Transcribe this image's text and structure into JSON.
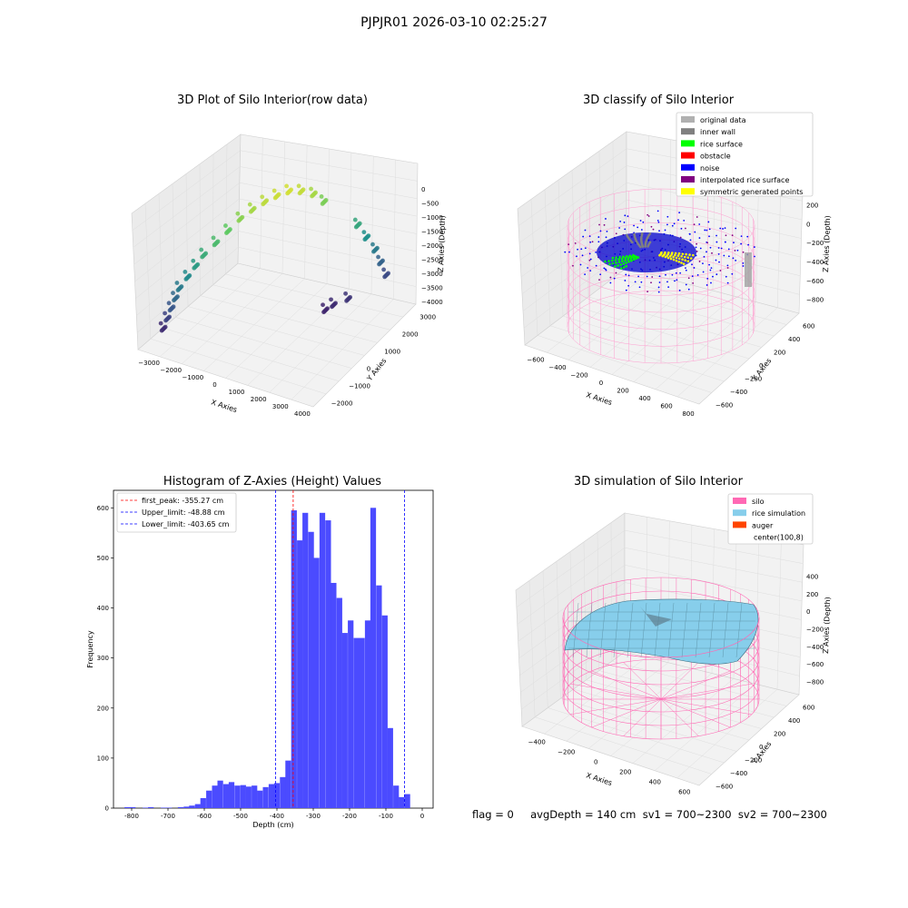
{
  "suptitle": "PJPJR01 2026-03-10 02:25:27",
  "footer": "flag = 0     avgDepth = 140 cm  sv1 = 700~2300  sv2 = 700~2300",
  "chart_data": [
    {
      "type": "scatter",
      "projection": "3d",
      "title": "3D Plot of Silo Interior(row data)",
      "xlabel": "X Axies",
      "ylabel": "Y Axies",
      "zlabel": "Z Axies (Depth)",
      "xticks": [
        "−3000",
        "−2000",
        "−1000",
        "0",
        "1000",
        "2000",
        "3000",
        "4000"
      ],
      "yticks": [
        "−2000",
        "−1000",
        "0",
        "1000",
        "2000",
        "3000"
      ],
      "zticks": [
        "0",
        "−500",
        "−1000",
        "−1500",
        "−2000",
        "−2500",
        "−3000",
        "−3500",
        "−4000"
      ],
      "xlim": [
        -3500,
        4200
      ],
      "ylim": [
        -2500,
        3200
      ],
      "zlim": [
        -4200,
        200
      ],
      "colormap": "viridis",
      "points": [
        {
          "x": -2800,
          "y": -1900,
          "z": -3600
        },
        {
          "x": -2700,
          "y": -1800,
          "z": -3300
        },
        {
          "x": -2600,
          "y": -1700,
          "z": -3000
        },
        {
          "x": -2500,
          "y": -1600,
          "z": -2700
        },
        {
          "x": -2400,
          "y": -1500,
          "z": -2400
        },
        {
          "x": -2200,
          "y": -1300,
          "z": -2100
        },
        {
          "x": -2000,
          "y": -1100,
          "z": -1800
        },
        {
          "x": -1800,
          "y": -900,
          "z": -1500
        },
        {
          "x": -1500,
          "y": -600,
          "z": -1200
        },
        {
          "x": -1200,
          "y": -300,
          "z": -900
        },
        {
          "x": -900,
          "y": 0,
          "z": -600
        },
        {
          "x": -600,
          "y": 300,
          "z": -400
        },
        {
          "x": -300,
          "y": 600,
          "z": -250
        },
        {
          "x": 0,
          "y": 900,
          "z": -150
        },
        {
          "x": 300,
          "y": 1200,
          "z": -100
        },
        {
          "x": 600,
          "y": 1500,
          "z": -200
        },
        {
          "x": 900,
          "y": 1800,
          "z": -400
        },
        {
          "x": 1200,
          "y": 2000,
          "z": -700
        },
        {
          "x": 2200,
          "y": 2600,
          "z": -1600
        },
        {
          "x": 2500,
          "y": 2700,
          "z": -2000
        },
        {
          "x": 2800,
          "y": 2800,
          "z": -2400
        },
        {
          "x": 3000,
          "y": 2850,
          "z": -2800
        },
        {
          "x": 3200,
          "y": 2900,
          "z": -3200
        },
        {
          "x": 2400,
          "y": 1800,
          "z": -3500
        },
        {
          "x": 2000,
          "y": 1500,
          "z": -3600
        },
        {
          "x": 1800,
          "y": 1300,
          "z": -3700
        }
      ]
    },
    {
      "type": "scatter",
      "projection": "3d",
      "title": "3D classify of Silo Interior",
      "xlabel": "X Axies",
      "ylabel": "Y Axies",
      "zlabel": "Z Axies (Depth)",
      "xticks": [
        "−600",
        "−400",
        "−200",
        "0",
        "200",
        "400",
        "600",
        "800"
      ],
      "yticks": [
        "−600",
        "−400",
        "−200",
        "0",
        "200",
        "400",
        "600"
      ],
      "zticks": [
        "200",
        "0",
        "−200",
        "−400",
        "−600",
        "−800"
      ],
      "xlim": [
        -650,
        850
      ],
      "ylim": [
        -700,
        700
      ],
      "zlim": [
        -900,
        300
      ],
      "legend": [
        {
          "label": "original data",
          "color": "#b0b0b0"
        },
        {
          "label": "inner wall",
          "color": "#808080"
        },
        {
          "label": "rice surface",
          "color": "#00ff00"
        },
        {
          "label": "obstacle",
          "color": "#ff0000"
        },
        {
          "label": "noise",
          "color": "#0000ff"
        },
        {
          "label": "interpolated rice surface",
          "color": "#800080"
        },
        {
          "label": "symmetric generated points",
          "color": "#ffff00"
        }
      ],
      "legend_position": "upper-right"
    },
    {
      "type": "bar",
      "title": "Histogram of Z-Axies (Height) Values",
      "xlabel": "Depth (cm)",
      "ylabel": "Frequency",
      "xlim": [
        -850,
        30
      ],
      "ylim": [
        0,
        635
      ],
      "xticks": [
        -800,
        -700,
        -600,
        -500,
        -400,
        -300,
        -200,
        -100,
        0
      ],
      "yticks": [
        0,
        100,
        200,
        300,
        400,
        500,
        600
      ],
      "bin_width": 15.6,
      "bar_color": "#4b4bff",
      "bins": [
        {
          "x": -812,
          "y": 2
        },
        {
          "x": -797,
          "y": 2
        },
        {
          "x": -762,
          "y": 1
        },
        {
          "x": -747,
          "y": 2
        },
        {
          "x": -712,
          "y": 1
        },
        {
          "x": -697,
          "y": 1
        },
        {
          "x": -665,
          "y": 2
        },
        {
          "x": -649,
          "y": 3
        },
        {
          "x": -634,
          "y": 5
        },
        {
          "x": -618,
          "y": 8
        },
        {
          "x": -603,
          "y": 20
        },
        {
          "x": -587,
          "y": 35
        },
        {
          "x": -571,
          "y": 45
        },
        {
          "x": -556,
          "y": 55
        },
        {
          "x": -540,
          "y": 48
        },
        {
          "x": -525,
          "y": 52
        },
        {
          "x": -509,
          "y": 45
        },
        {
          "x": -493,
          "y": 46
        },
        {
          "x": -478,
          "y": 43
        },
        {
          "x": -462,
          "y": 45
        },
        {
          "x": -447,
          "y": 35
        },
        {
          "x": -431,
          "y": 42
        },
        {
          "x": -415,
          "y": 48
        },
        {
          "x": -400,
          "y": 50
        },
        {
          "x": -384,
          "y": 62
        },
        {
          "x": -369,
          "y": 95
        },
        {
          "x": -353,
          "y": 595
        },
        {
          "x": -337,
          "y": 535
        },
        {
          "x": -322,
          "y": 590
        },
        {
          "x": -306,
          "y": 552
        },
        {
          "x": -291,
          "y": 500
        },
        {
          "x": -275,
          "y": 590
        },
        {
          "x": -259,
          "y": 575
        },
        {
          "x": -244,
          "y": 450
        },
        {
          "x": -228,
          "y": 420
        },
        {
          "x": -213,
          "y": 350
        },
        {
          "x": -197,
          "y": 375
        },
        {
          "x": -181,
          "y": 340
        },
        {
          "x": -166,
          "y": 340
        },
        {
          "x": -150,
          "y": 375
        },
        {
          "x": -135,
          "y": 600
        },
        {
          "x": -119,
          "y": 445
        },
        {
          "x": -103,
          "y": 385
        },
        {
          "x": -88,
          "y": 160
        },
        {
          "x": -72,
          "y": 45
        },
        {
          "x": -57,
          "y": 22
        },
        {
          "x": -41,
          "y": 28
        }
      ],
      "vlines": [
        {
          "x": -355.27,
          "color": "#ff0000"
        },
        {
          "x": -48.88,
          "color": "#0000ff"
        },
        {
          "x": -403.65,
          "color": "#0000ff"
        }
      ],
      "legend": [
        {
          "label": "first_peak: -355.27 cm",
          "color": "#ff0000"
        },
        {
          "label": "Upper_limit: -48.88 cm",
          "color": "#0000ff"
        },
        {
          "label": "Lower_limit: -403.65 cm",
          "color": "#0000ff"
        }
      ],
      "legend_position": "upper-left"
    },
    {
      "type": "area",
      "projection": "3d",
      "title": "3D simulation of Silo Interior",
      "xlabel": "X Axies",
      "ylabel": "Y Axies",
      "zlabel": "Z Axies (Depth)",
      "xticks": [
        "−400",
        "−200",
        "0",
        "200",
        "400",
        "600"
      ],
      "yticks": [
        "−600",
        "−400",
        "−200",
        "0",
        "200",
        "400",
        "600"
      ],
      "zticks": [
        "400",
        "200",
        "0",
        "−200",
        "−400",
        "−600",
        "−800"
      ],
      "xlim": [
        -500,
        700
      ],
      "ylim": [
        -700,
        700
      ],
      "zlim": [
        -900,
        450
      ],
      "legend": [
        {
          "label": "silo",
          "color": "#ff69b4"
        },
        {
          "label": "rice simulation",
          "color": "#87ceeb"
        },
        {
          "label": "auger",
          "color": "#ff4500"
        },
        {
          "label": "center(100,8)",
          "color": ""
        }
      ],
      "legend_position": "upper-right"
    }
  ]
}
